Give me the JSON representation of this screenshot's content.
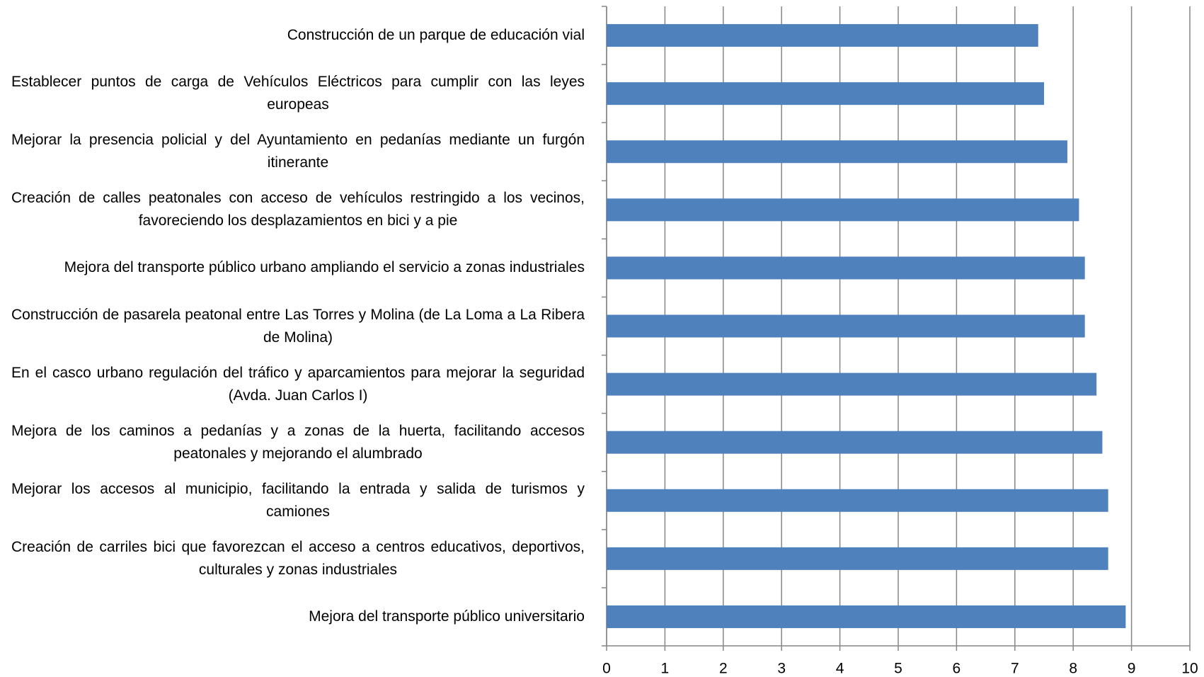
{
  "chart_data": {
    "type": "bar",
    "orientation": "horizontal",
    "categories": [
      "Construcción de un parque de educación vial",
      "Establecer puntos de carga de Vehículos Eléctricos para cumplir con las leyes europeas",
      "Mejorar la presencia policial y del Ayuntamiento en pedanías mediante un furgón itinerante",
      "Creación de calles peatonales con acceso de vehículos restringido a los vecinos, favoreciendo los desplazamientos en bici y a pie",
      "Mejora del transporte público urbano ampliando el servicio a zonas industriales",
      "Construcción de pasarela peatonal entre Las Torres y Molina (de La Loma a La Ribera de Molina)",
      "En el casco urbano regulación del tráfico y aparcamientos para mejorar la seguridad (Avda. Juan Carlos I)",
      "Mejora de los caminos a pedanías y a zonas de la huerta, facilitando accesos peatonales y mejorando el alumbrado",
      "Mejorar los accesos al municipio, facilitando la entrada y salida de turismos y camiones",
      "Creación de carriles bici que favorezcan el acceso a centros educativos, deportivos, culturales y zonas industriales",
      "Mejora del transporte público universitario"
    ],
    "values": [
      7.4,
      7.5,
      7.9,
      8.1,
      8.2,
      8.2,
      8.4,
      8.5,
      8.6,
      8.6,
      8.9
    ],
    "color": "#4f81bd",
    "xlim": [
      0,
      10
    ],
    "xticks": [
      0,
      1,
      2,
      3,
      4,
      5,
      6,
      7,
      8,
      9,
      10
    ],
    "grid": true
  }
}
